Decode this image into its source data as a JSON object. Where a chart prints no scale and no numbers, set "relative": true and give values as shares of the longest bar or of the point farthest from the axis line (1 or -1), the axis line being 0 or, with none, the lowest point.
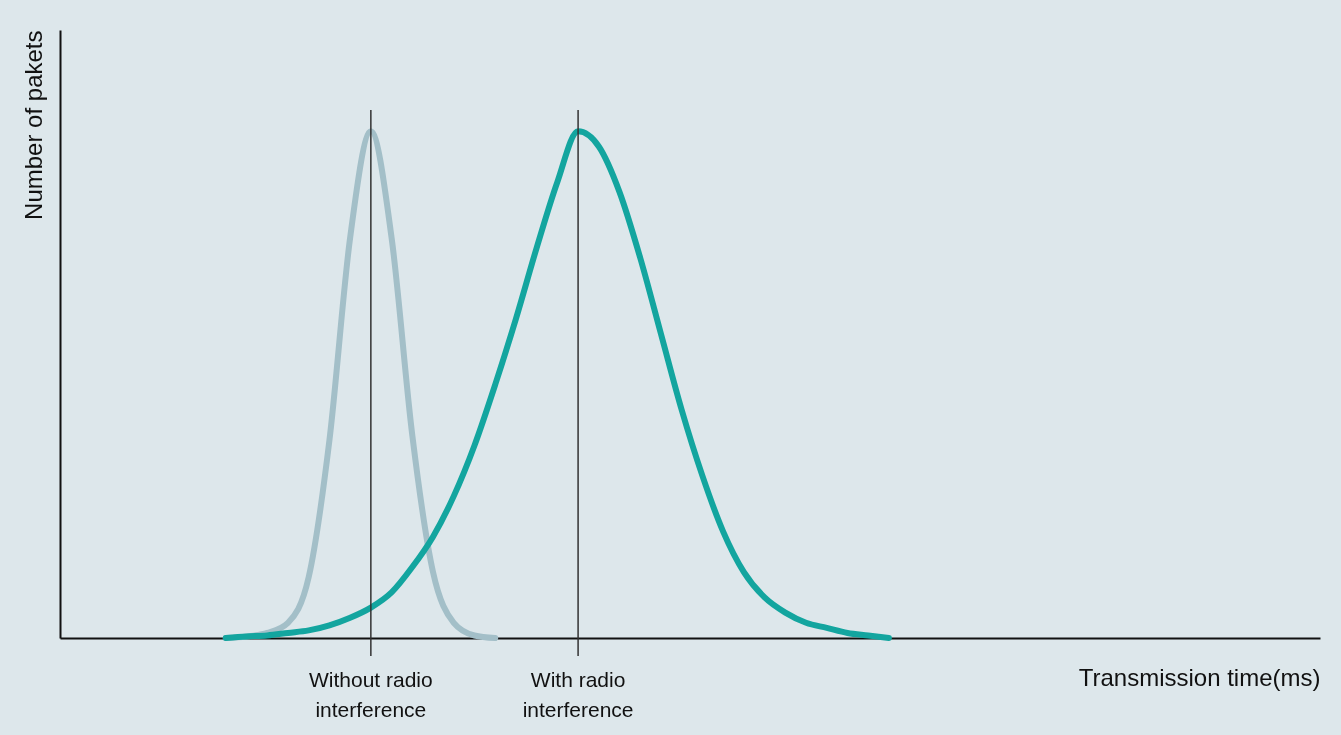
{
  "chart_data": {
    "type": "line",
    "relative": true,
    "xlabel": "Transmission time(ms)",
    "ylabel": "Number of pakets",
    "categories": [
      null,
      null,
      null,
      null,
      null,
      null,
      null,
      null,
      null,
      null,
      null,
      null,
      null,
      null,
      null,
      "Without radio interference",
      null,
      null,
      null,
      null,
      null,
      null,
      null,
      null,
      null,
      "With radio interference",
      null,
      null,
      null,
      null,
      null,
      null,
      null,
      null,
      null,
      null,
      null,
      null,
      null,
      null,
      null,
      null,
      null,
      null,
      null,
      null,
      null,
      null,
      null,
      null,
      null,
      null,
      null,
      null,
      null,
      null,
      null,
      null,
      null,
      null,
      null
    ],
    "series": [
      {
        "color": "#a3bfc8",
        "values": [
          null,
          null,
          null,
          null,
          null,
          null,
          null,
          null,
          0,
          0.003,
          0.01,
          0.03,
          0.12,
          0.39,
          0.79,
          1,
          0.79,
          0.4,
          0.13,
          0.03,
          0.005,
          0,
          null,
          null,
          null,
          null,
          null,
          null,
          null,
          null,
          null,
          null,
          null,
          null,
          null,
          null,
          null,
          null,
          null,
          null,
          null,
          null,
          null,
          null,
          null,
          null,
          null,
          null,
          null,
          null,
          null,
          null,
          null,
          null,
          null,
          null,
          null,
          null,
          null,
          null,
          null
        ]
      },
      {
        "color": "#13a59f",
        "values": [
          null,
          null,
          null,
          null,
          null,
          null,
          null,
          null,
          0,
          0.003,
          0.005,
          0.01,
          0.015,
          0.025,
          0.04,
          0.06,
          0.09,
          0.14,
          0.2,
          0.28,
          0.38,
          0.5,
          0.63,
          0.77,
          0.9,
          1,
          0.97,
          0.88,
          0.75,
          0.6,
          0.45,
          0.32,
          0.21,
          0.13,
          0.08,
          0.05,
          0.03,
          0.02,
          0.01,
          0.005,
          0,
          null,
          null,
          null,
          null,
          null,
          null,
          null,
          null,
          null,
          null,
          null,
          null,
          null,
          null,
          null,
          null,
          null,
          null,
          null,
          null
        ]
      }
    ],
    "tick_labels": "x",
    "grid": "x",
    "marker": "none",
    "line_style": "solid"
  }
}
